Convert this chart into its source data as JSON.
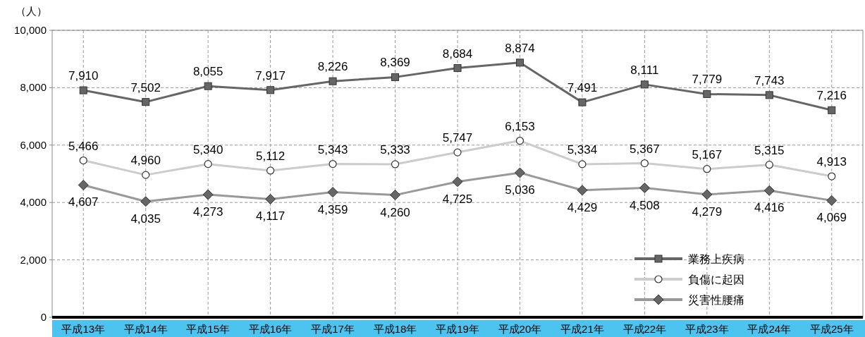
{
  "chart_data": {
    "type": "line",
    "ylabel": "（人）",
    "categories": [
      "平成13年",
      "平成14年",
      "平成15年",
      "平成16年",
      "平成17年",
      "平成18年",
      "平成19年",
      "平成20年",
      "平成21年",
      "平成22年",
      "平成23年",
      "平成24年",
      "平成25年"
    ],
    "series": [
      {
        "name": "業務上疾病",
        "color": "#666666",
        "marker": "square",
        "values": [
          7910,
          7502,
          8055,
          7917,
          8226,
          8369,
          8684,
          8874,
          7491,
          8111,
          7779,
          7743,
          7216
        ],
        "value_labels": [
          "7,910",
          "7,502",
          "8,055",
          "7,917",
          "8,226",
          "8,369",
          "8,684",
          "8,874",
          "7,491",
          "8,111",
          "7,779",
          "7,743",
          "7,216"
        ]
      },
      {
        "name": "負傷に起因",
        "color": "#cccccc",
        "marker": "circle",
        "values": [
          5466,
          4960,
          5340,
          5112,
          5343,
          5333,
          5747,
          6153,
          5334,
          5367,
          5167,
          5315,
          4913
        ],
        "value_labels": [
          "5,466",
          "4,960",
          "5,340",
          "5,112",
          "5,343",
          "5,333",
          "5,747",
          "6,153",
          "5,334",
          "5,367",
          "5,167",
          "5,315",
          "4,913"
        ]
      },
      {
        "name": "災害性腰痛",
        "color": "#999999",
        "marker": "diamond",
        "values": [
          4607,
          4035,
          4273,
          4117,
          4359,
          4260,
          4725,
          5036,
          4429,
          4508,
          4279,
          4416,
          4069
        ],
        "value_labels": [
          "4,607",
          "4,035",
          "4,273",
          "4,117",
          "4,359",
          "4,260",
          "4,725",
          "5,036",
          "4,429",
          "4,508",
          "4,279",
          "4,416",
          "4,069"
        ]
      }
    ],
    "ylim": [
      0,
      10000
    ],
    "yticks": [
      {
        "value": 0,
        "label": "0"
      },
      {
        "value": 2000,
        "label": "2,000"
      },
      {
        "value": 4000,
        "label": "4,000"
      },
      {
        "value": 6000,
        "label": "6,000"
      },
      {
        "value": 8000,
        "label": "8,000"
      },
      {
        "value": 10000,
        "label": "10,000"
      }
    ],
    "grid": true,
    "legend": "bottom right",
    "line_style": "solid"
  }
}
